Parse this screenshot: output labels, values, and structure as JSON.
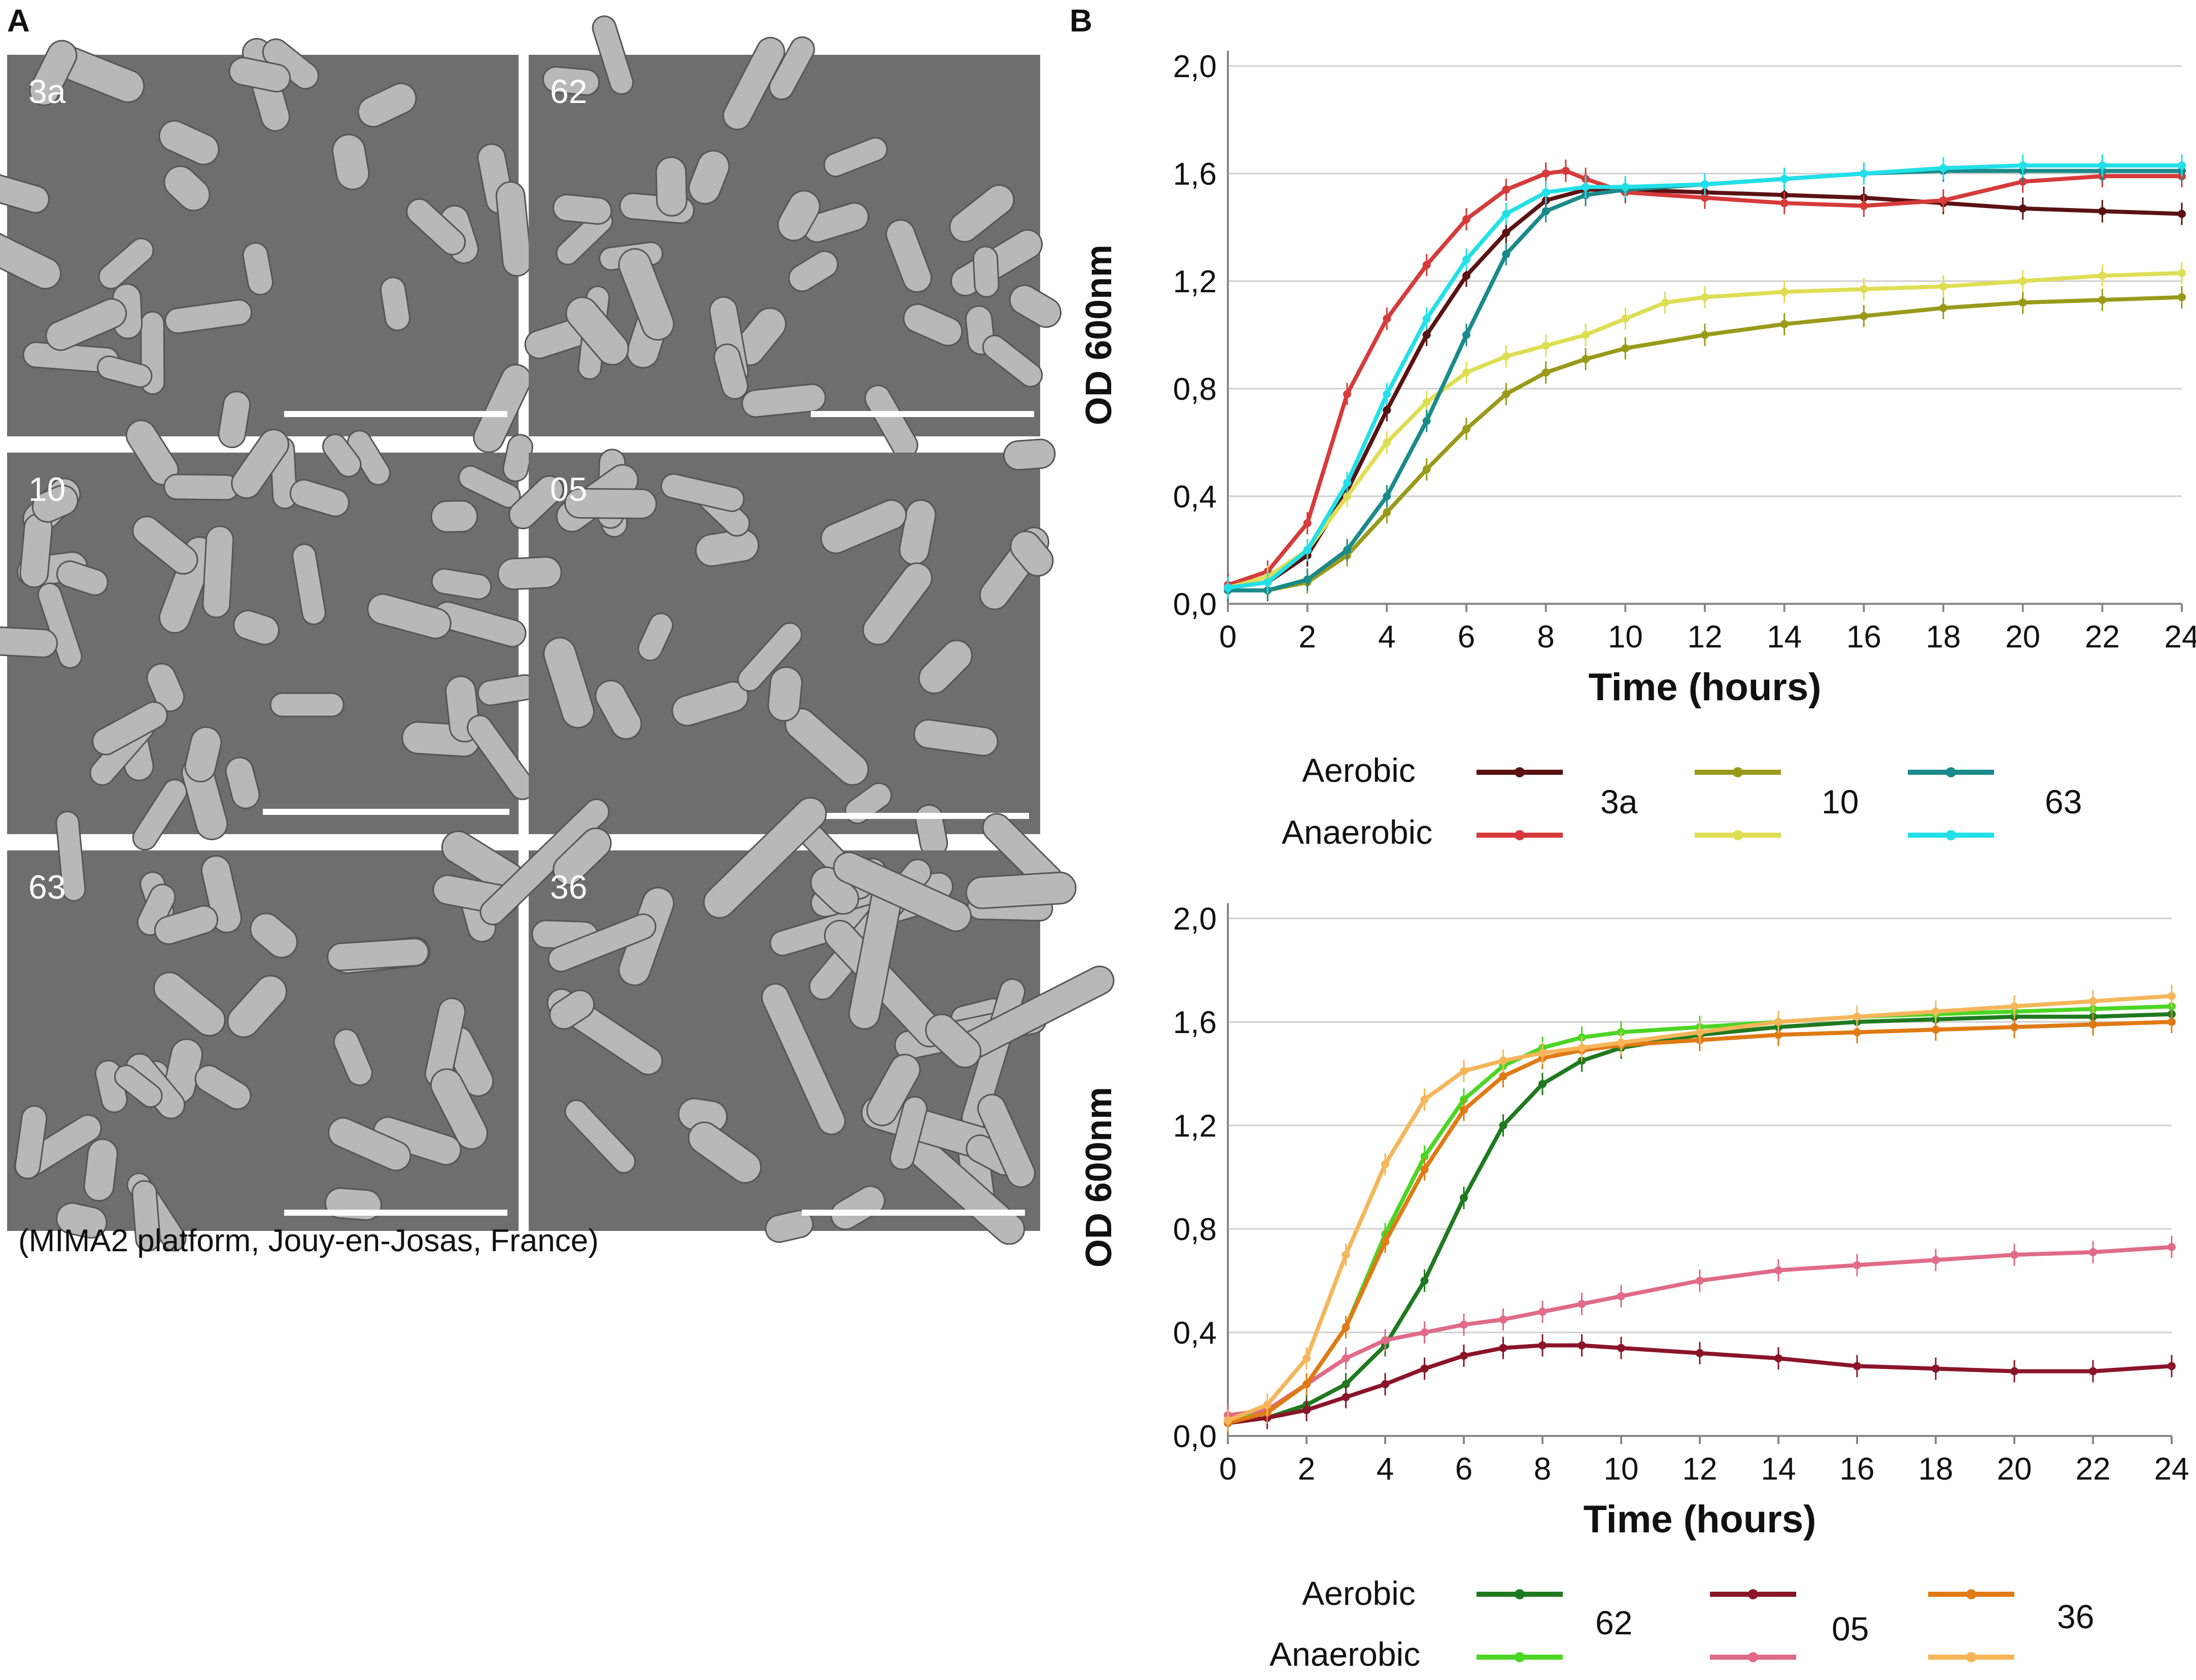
{
  "panels": {
    "a_label": "A",
    "b_label": "B"
  },
  "micrographs": [
    {
      "label": "3a"
    },
    {
      "label": "62"
    },
    {
      "label": "10"
    },
    {
      "label": "05"
    },
    {
      "label": "63"
    },
    {
      "label": "36"
    }
  ],
  "credit": "(MIMA2 platform, Jouy-en-Josas, France)",
  "legend_top": {
    "aerobic": "Aerobic",
    "anaerobic": "Anaerobic",
    "strains": [
      "3a",
      "10",
      "63"
    ]
  },
  "legend_bottom": {
    "aerobic": "Aerobic",
    "anaerobic": "Anaerobic",
    "strains": [
      "62",
      "05",
      "36"
    ]
  },
  "chart_data": [
    {
      "type": "line",
      "xlabel": "Time (hours)",
      "ylabel": "OD 600nm",
      "xlim": [
        0,
        24
      ],
      "ylim": [
        0,
        2
      ],
      "xticks": [
        "0",
        "2",
        "4",
        "6",
        "8",
        "10",
        "12",
        "14",
        "16",
        "18",
        "20",
        "22",
        "24"
      ],
      "yticks": [
        "0,0",
        "0,4",
        "0,8",
        "1,2",
        "1,6",
        "2,0"
      ],
      "grid": "horizontal",
      "series": [
        {
          "strain": "3a",
          "condition": "Aerobic",
          "color": "#5a1212",
          "x": [
            0,
            1,
            2,
            3,
            4,
            5,
            6,
            7,
            8,
            9,
            10,
            12,
            14,
            16,
            18,
            20,
            22,
            24
          ],
          "y": [
            0.06,
            0.08,
            0.18,
            0.42,
            0.72,
            1.0,
            1.22,
            1.38,
            1.5,
            1.54,
            1.54,
            1.53,
            1.52,
            1.51,
            1.49,
            1.47,
            1.46,
            1.45
          ]
        },
        {
          "strain": "3a",
          "condition": "Anaerobic",
          "color": "#d63a3a",
          "x": [
            0,
            1,
            2,
            3,
            4,
            5,
            6,
            7,
            8,
            8.5,
            9,
            10,
            12,
            14,
            16,
            18,
            20,
            22,
            24
          ],
          "y": [
            0.07,
            0.12,
            0.3,
            0.78,
            1.06,
            1.26,
            1.43,
            1.54,
            1.6,
            1.61,
            1.58,
            1.53,
            1.51,
            1.49,
            1.48,
            1.5,
            1.57,
            1.59,
            1.59
          ]
        },
        {
          "strain": "10",
          "condition": "Aerobic",
          "color": "#9a9a1a",
          "x": [
            0,
            1,
            2,
            3,
            4,
            5,
            6,
            7,
            8,
            9,
            10,
            12,
            14,
            16,
            18,
            20,
            22,
            24
          ],
          "y": [
            0.05,
            0.05,
            0.08,
            0.18,
            0.34,
            0.5,
            0.65,
            0.78,
            0.86,
            0.91,
            0.95,
            1.0,
            1.04,
            1.07,
            1.1,
            1.12,
            1.13,
            1.14
          ]
        },
        {
          "strain": "10",
          "condition": "Anaerobic",
          "color": "#dede55",
          "x": [
            0,
            1,
            2,
            3,
            4,
            5,
            6,
            7,
            8,
            9,
            10,
            11,
            12,
            14,
            16,
            18,
            20,
            22,
            24
          ],
          "y": [
            0.06,
            0.1,
            0.2,
            0.4,
            0.6,
            0.75,
            0.86,
            0.92,
            0.96,
            1.0,
            1.06,
            1.12,
            1.14,
            1.16,
            1.17,
            1.18,
            1.2,
            1.22,
            1.23
          ]
        },
        {
          "strain": "63",
          "condition": "Aerobic",
          "color": "#1a8a8a",
          "x": [
            0,
            1,
            2,
            3,
            4,
            5,
            6,
            7,
            8,
            9,
            10,
            12,
            14,
            16,
            18,
            20,
            22,
            24
          ],
          "y": [
            0.05,
            0.05,
            0.09,
            0.2,
            0.4,
            0.68,
            1.0,
            1.3,
            1.46,
            1.52,
            1.54,
            1.56,
            1.58,
            1.6,
            1.61,
            1.61,
            1.61,
            1.61
          ]
        },
        {
          "strain": "63",
          "condition": "Anaerobic",
          "color": "#22e0e8",
          "x": [
            0,
            1,
            2,
            3,
            4,
            5,
            6,
            7,
            8,
            9,
            10,
            12,
            14,
            16,
            18,
            20,
            22,
            24
          ],
          "y": [
            0.06,
            0.08,
            0.2,
            0.45,
            0.78,
            1.06,
            1.28,
            1.45,
            1.53,
            1.55,
            1.55,
            1.56,
            1.58,
            1.6,
            1.62,
            1.63,
            1.63,
            1.63
          ]
        }
      ]
    },
    {
      "type": "line",
      "xlabel": "Time (hours)",
      "ylabel": "OD 600nm",
      "xlim": [
        0,
        24
      ],
      "ylim": [
        0,
        2
      ],
      "xticks": [
        "0",
        "2",
        "4",
        "6",
        "8",
        "10",
        "12",
        "14",
        "16",
        "18",
        "20",
        "22",
        "24"
      ],
      "yticks": [
        "0,0",
        "0,4",
        "0,8",
        "1,2",
        "1,6",
        "2,0"
      ],
      "grid": "horizontal",
      "series": [
        {
          "strain": "62",
          "condition": "Aerobic",
          "color": "#1f7a1f",
          "x": [
            0,
            1,
            2,
            3,
            4,
            5,
            6,
            7,
            8,
            9,
            10,
            12,
            14,
            16,
            18,
            20,
            22,
            24
          ],
          "y": [
            0.05,
            0.07,
            0.12,
            0.2,
            0.35,
            0.6,
            0.92,
            1.2,
            1.36,
            1.45,
            1.5,
            1.55,
            1.58,
            1.6,
            1.61,
            1.62,
            1.62,
            1.63
          ]
        },
        {
          "strain": "62",
          "condition": "Anaerobic",
          "color": "#4cd624",
          "x": [
            0,
            1,
            2,
            3,
            4,
            5,
            6,
            7,
            8,
            9,
            10,
            12,
            14,
            16,
            18,
            20,
            22,
            24
          ],
          "y": [
            0.05,
            0.1,
            0.2,
            0.42,
            0.78,
            1.08,
            1.3,
            1.43,
            1.5,
            1.54,
            1.56,
            1.58,
            1.6,
            1.62,
            1.63,
            1.64,
            1.65,
            1.66
          ]
        },
        {
          "strain": "05",
          "condition": "Aerobic",
          "color": "#8a1428",
          "x": [
            0,
            1,
            2,
            3,
            4,
            5,
            6,
            7,
            8,
            9,
            10,
            12,
            14,
            16,
            18,
            20,
            22,
            24
          ],
          "y": [
            0.05,
            0.07,
            0.1,
            0.15,
            0.2,
            0.26,
            0.31,
            0.34,
            0.35,
            0.35,
            0.34,
            0.32,
            0.3,
            0.27,
            0.26,
            0.25,
            0.25,
            0.27
          ]
        },
        {
          "strain": "05",
          "condition": "Anaerobic",
          "color": "#e06a8a",
          "x": [
            0,
            1,
            2,
            3,
            4,
            5,
            6,
            7,
            8,
            9,
            10,
            12,
            14,
            16,
            18,
            20,
            22,
            24
          ],
          "y": [
            0.08,
            0.1,
            0.2,
            0.3,
            0.37,
            0.4,
            0.43,
            0.45,
            0.48,
            0.51,
            0.54,
            0.6,
            0.64,
            0.66,
            0.68,
            0.7,
            0.71,
            0.73
          ]
        },
        {
          "strain": "36",
          "condition": "Aerobic",
          "color": "#e07a14",
          "x": [
            0,
            1,
            2,
            3,
            4,
            5,
            6,
            7,
            8,
            9,
            10,
            12,
            14,
            16,
            18,
            20,
            22,
            24
          ],
          "y": [
            0.05,
            0.09,
            0.2,
            0.42,
            0.75,
            1.03,
            1.26,
            1.39,
            1.46,
            1.49,
            1.51,
            1.53,
            1.55,
            1.56,
            1.57,
            1.58,
            1.59,
            1.6
          ]
        },
        {
          "strain": "36",
          "condition": "Anaerobic",
          "color": "#f5b65a",
          "x": [
            0,
            1,
            2,
            3,
            4,
            5,
            6,
            7,
            8,
            9,
            10,
            12,
            14,
            16,
            18,
            20,
            22,
            24
          ],
          "y": [
            0.06,
            0.12,
            0.3,
            0.7,
            1.05,
            1.3,
            1.41,
            1.45,
            1.48,
            1.5,
            1.52,
            1.56,
            1.6,
            1.62,
            1.64,
            1.66,
            1.68,
            1.7
          ]
        }
      ]
    }
  ]
}
